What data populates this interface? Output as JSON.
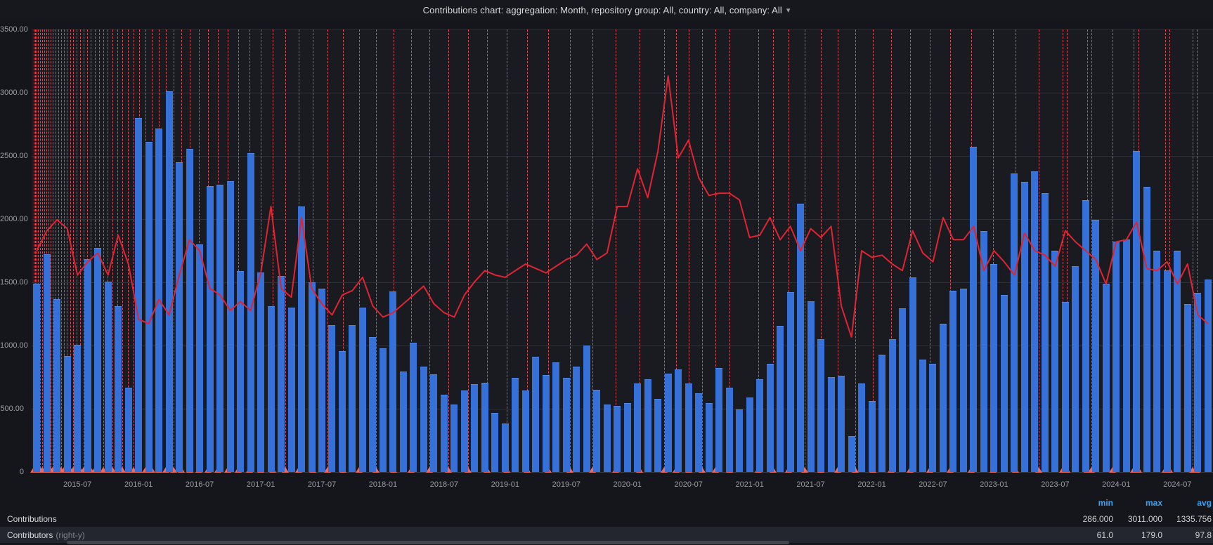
{
  "header": {
    "title": "Contributions chart: aggregation: Month, repository group: All, country: All, company: All",
    "chevron": "▾"
  },
  "y_axis": {
    "labels": [
      "3500.00",
      "3000.00",
      "2500.00",
      "2000.00",
      "1500.00",
      "1000.00",
      "500.00",
      "0"
    ]
  },
  "x_axis": {
    "tick_labels": [
      "2015-07",
      "2016-01",
      "2016-07",
      "2017-01",
      "2017-07",
      "2018-01",
      "2018-07",
      "2019-01",
      "2019-07",
      "2020-01",
      "2020-07",
      "2021-01",
      "2021-07",
      "2022-01",
      "2022-07",
      "2023-01",
      "2023-07",
      "2024-01",
      "2024-07"
    ],
    "tick_month_indices": [
      4,
      10,
      16,
      22,
      28,
      34,
      40,
      46,
      52,
      58,
      64,
      70,
      76,
      82,
      88,
      94,
      100,
      106,
      112
    ]
  },
  "chart_data": {
    "type": "bar+line",
    "start_month": "2015-03",
    "n_months": 116,
    "left_axis": {
      "min": 0,
      "max": 3500,
      "grid": true
    },
    "right_axis": {
      "min": 0,
      "max": 200,
      "visible": false
    },
    "series": [
      {
        "name": "Contributions",
        "type": "bar",
        "axis": "left",
        "color": "#3671d9",
        "values": [
          1490,
          1720,
          1365,
          915,
          1005,
          1685,
          1770,
          1505,
          1310,
          665,
          2800,
          2610,
          2715,
          3011,
          2450,
          2555,
          1800,
          2260,
          2270,
          2300,
          1590,
          2520,
          1580,
          1310,
          1550,
          1300,
          2100,
          1500,
          1450,
          1161,
          955,
          1160,
          1302,
          1067,
          980,
          1430,
          792,
          1022,
          833,
          773,
          610,
          532,
          643,
          692,
          704,
          465,
          386,
          743,
          643,
          910,
          766,
          866,
          742,
          833,
          1000,
          648,
          532,
          525,
          545,
          700,
          735,
          578,
          777,
          812,
          700,
          620,
          542,
          822,
          665,
          497,
          588,
          735,
          857,
          1155,
          1425,
          2120,
          1350,
          1050,
          752,
          762,
          286,
          700,
          560,
          927,
          1050,
          1295,
          1540,
          890,
          858,
          1172,
          1435,
          1450,
          2572,
          1907,
          1645,
          1400,
          2362,
          2292,
          2380,
          2205,
          1750,
          1347,
          1627,
          2152,
          1995,
          1487,
          1820,
          1837,
          2537,
          2257,
          1750,
          1592,
          1750,
          1330,
          1417,
          1522
        ]
      },
      {
        "name": "Contributors",
        "type": "line",
        "axis": "right",
        "color": "#e02433",
        "values": [
          100,
          109,
          114,
          110,
          89,
          95,
          99,
          89,
          107,
          94,
          69,
          67,
          78,
          71,
          89,
          105,
          100,
          83,
          80,
          73,
          77,
          73,
          90,
          120,
          83,
          79,
          115,
          83,
          76,
          71,
          80,
          82,
          88,
          75,
          70,
          72,
          76,
          80,
          84,
          76,
          72,
          70,
          80,
          86,
          91,
          89,
          88,
          91,
          94,
          92,
          90,
          93,
          96,
          98,
          103,
          96,
          99,
          120,
          120,
          137,
          124,
          145,
          179,
          142,
          150,
          133,
          125,
          126,
          126,
          123,
          106,
          107,
          115,
          105,
          111,
          100,
          110,
          106,
          111,
          75,
          61,
          100,
          97,
          98,
          94,
          91,
          109,
          99,
          95,
          115,
          105,
          105,
          111,
          91,
          100,
          95,
          89,
          108,
          100,
          98,
          93,
          109,
          104,
          100,
          96,
          85,
          104,
          105,
          113,
          92,
          91,
          95,
          85,
          94,
          71,
          67
        ]
      }
    ],
    "annotations_pct": [
      0.18,
      0.3,
      0.42,
      0.54,
      0.71,
      0.89,
      1.07,
      1.25,
      1.43,
      1.61,
      1.78,
      2.02,
      2.26,
      2.5,
      2.74,
      2.97,
      3.27,
      3.51,
      3.81,
      4.1,
      4.4,
      4.7,
      5.0,
      5.35,
      5.71,
      6.07,
      6.42,
      6.84,
      7.26,
      7.67,
      8.15,
      8.63,
      9.1,
      9.64,
      10.17,
      10.77,
      11.36,
      12.02,
      12.67,
      13.38,
      14.16,
      14.93,
      15.76,
      16.6,
      17.49,
      18.44,
      19.39,
      20.4,
      21.48,
      22.61,
      23.8,
      25.04,
      26.35,
      27.72,
      29.15,
      30.64,
      32.12,
      33.67,
      35.28,
      36.94,
      38.55,
      40.21,
      41.94,
      43.72,
      45.57,
      47.47,
      49.43,
      51.46,
      53.54,
      54.55,
      55.62,
      56.75,
      57.88,
      59.07,
      61.51,
      62.76,
      64.07,
      65.44,
      66.81,
      68.23,
      69.72,
      71.21,
      72.75,
      74.36,
      76.03,
      77.75,
      79.54,
      81.38,
      83.28,
      85.25,
      87.27,
      87.62,
      89.35,
      89.72,
      91.49,
      93.3,
      93.69,
      95.96,
      96.33,
      98.27,
      98.62
    ],
    "annotation_color": "#ff5661",
    "annotation_marker_color": "#ec6a5e",
    "grid_color": "#2e3138",
    "background_color": "#1a1b21"
  },
  "legend": {
    "headers": {
      "min": "min",
      "max": "max",
      "avg": "avg"
    },
    "rows": [
      {
        "label": "Contributions",
        "suffix": "",
        "min": "286.000",
        "max": "3011.000",
        "avg": "1335.756"
      },
      {
        "label": "Contributors",
        "suffix": "(right-y)",
        "min": "61.0",
        "max": "179.0",
        "avg": "97.8"
      }
    ]
  }
}
